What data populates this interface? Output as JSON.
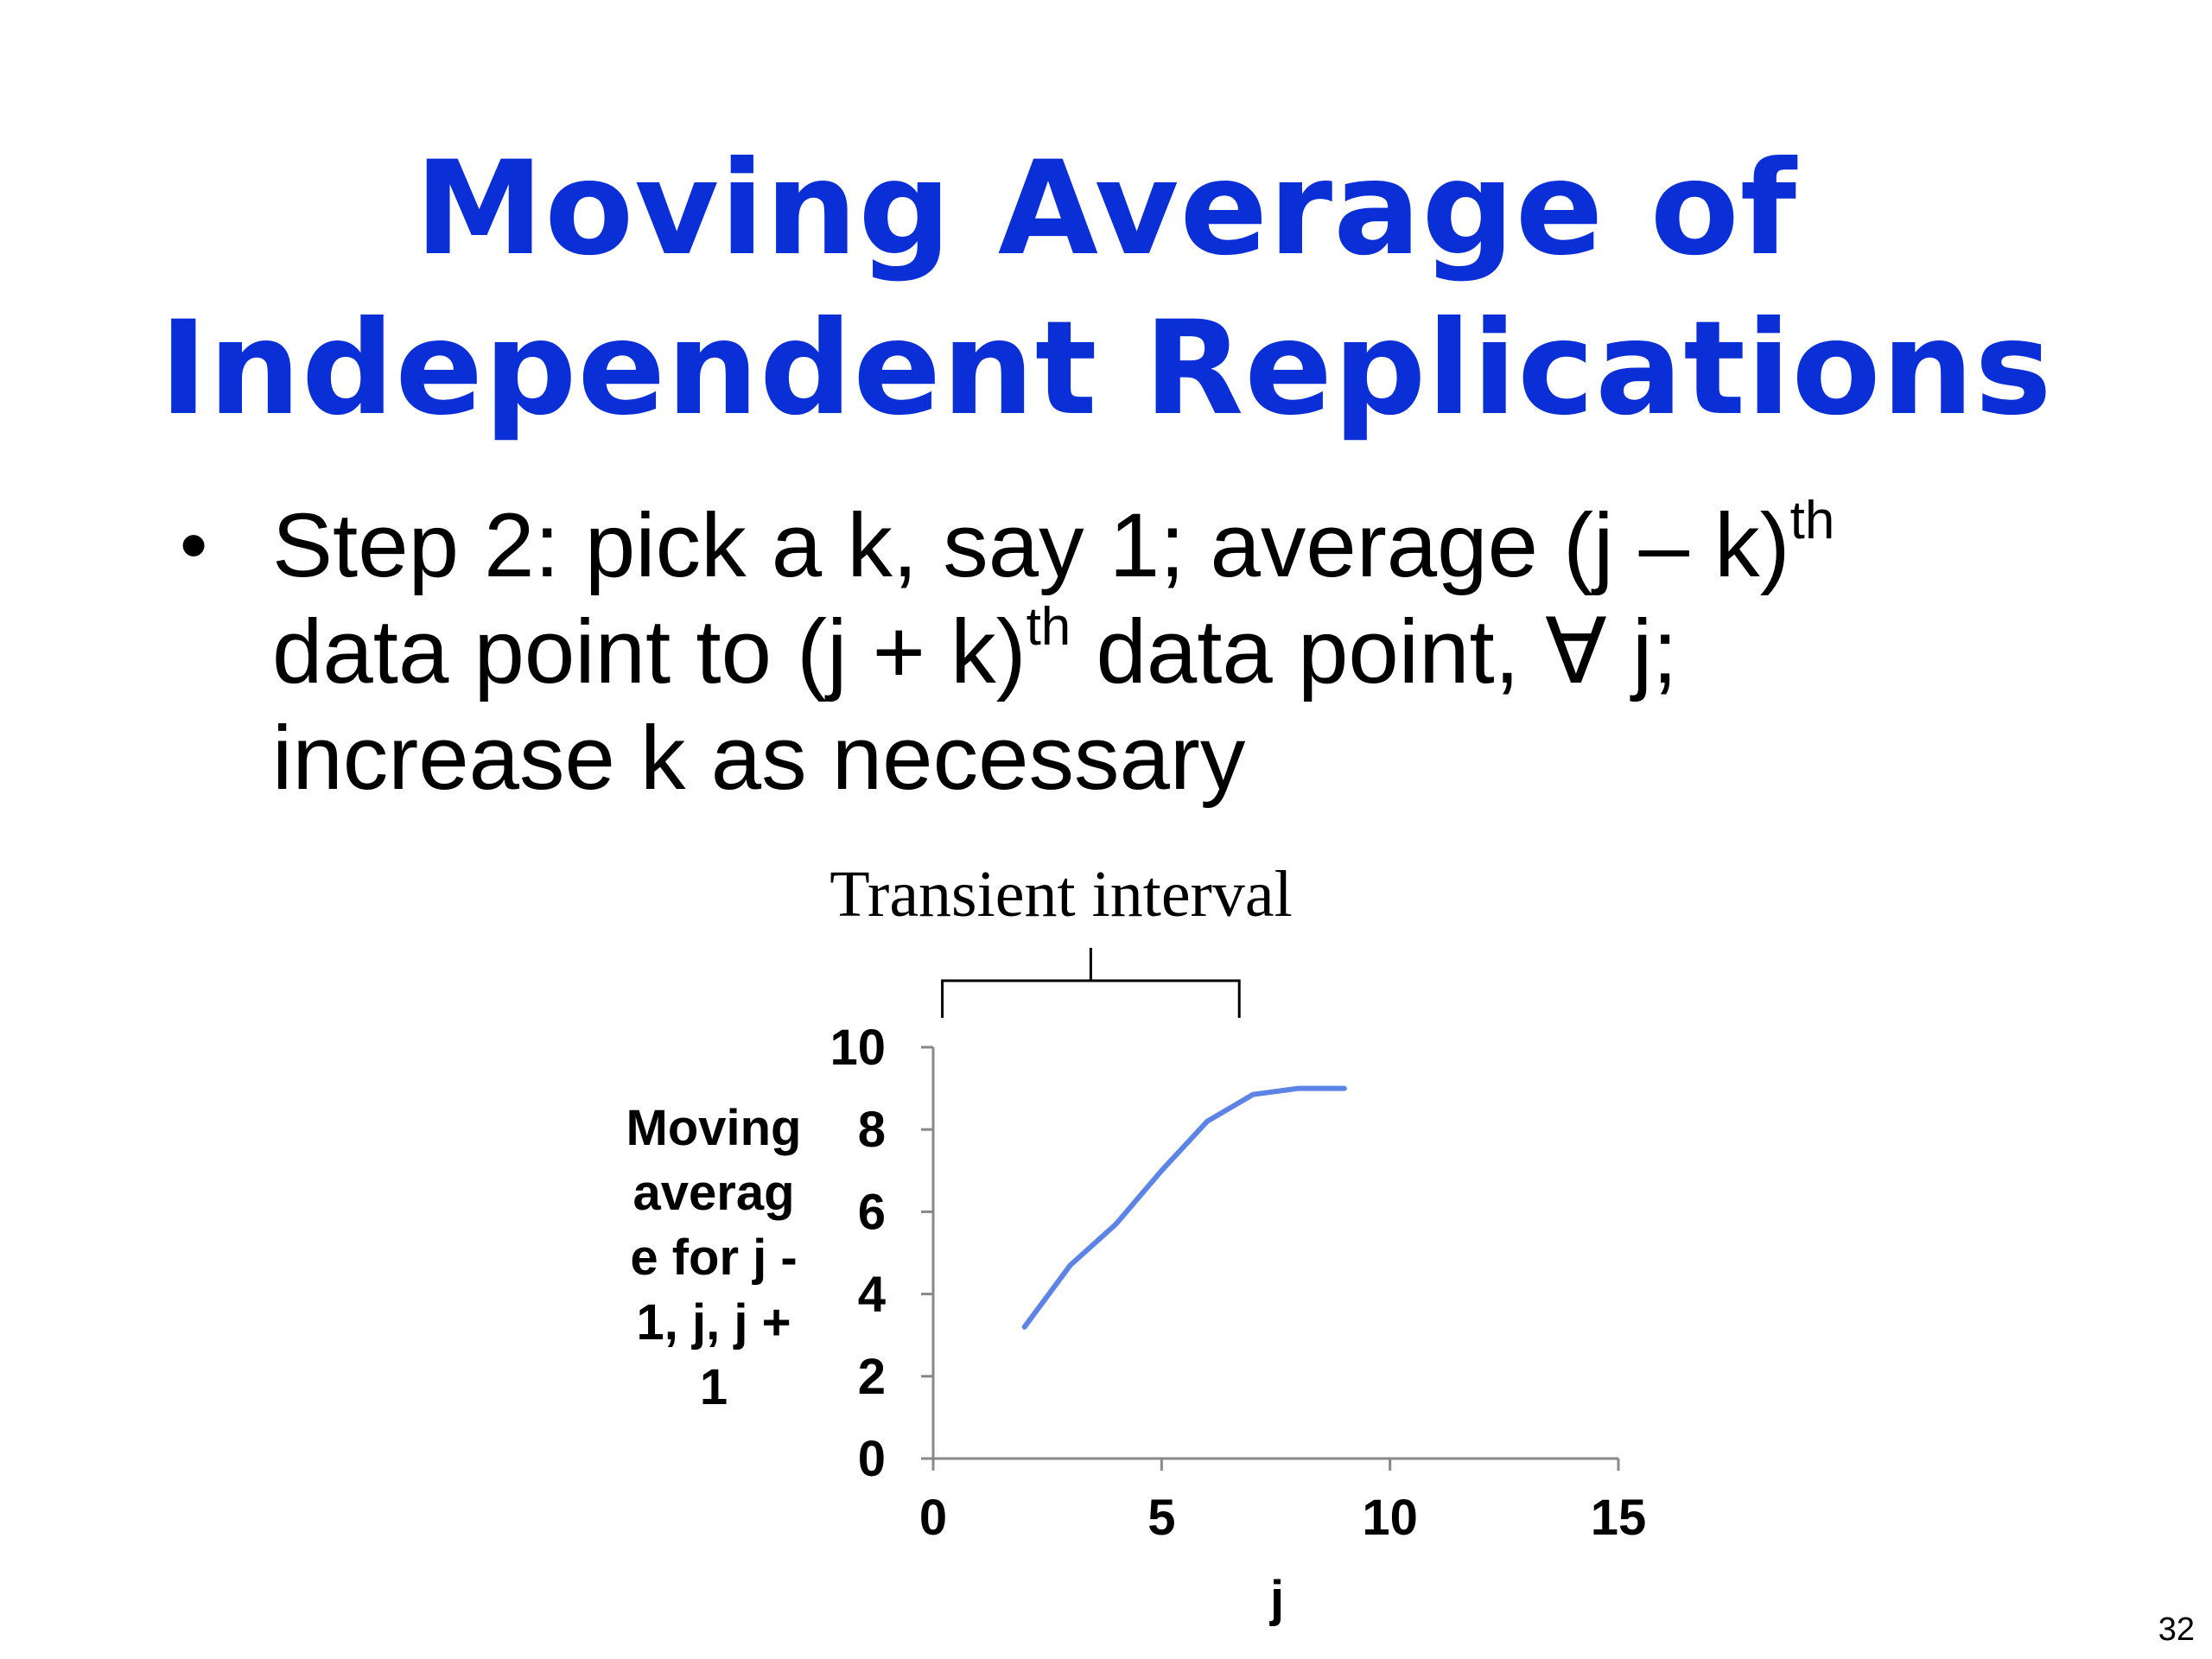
{
  "slide": {
    "title_line1": "Moving Average of",
    "title_line2": "Independent Replications",
    "bullet": {
      "line1_main": "Step 2: pick a k, say 1; average (j – k)",
      "line1_sup": "th",
      "line2_a": "data point to (j + k)",
      "line2_sup": "th",
      "line2_b": " data point, ∀ j;",
      "line3": "increase k as necessary"
    },
    "page_number": "32"
  },
  "chart_data": {
    "type": "line",
    "annotation": "Transient interval",
    "xlabel": "j",
    "ylabel_lines": [
      "Moving",
      "averag",
      "e for j -",
      "1, j, j +",
      "1"
    ],
    "xlim": [
      0,
      15
    ],
    "ylim": [
      0,
      10
    ],
    "x_ticks": [
      0,
      5,
      10,
      15
    ],
    "y_ticks": [
      0,
      2,
      4,
      6,
      8,
      10
    ],
    "grid": false,
    "line_color": "#5b84e6",
    "transient_interval": [
      0.2,
      6.7
    ],
    "series": [
      {
        "x": [
          2,
          3,
          4,
          5,
          6,
          7,
          8,
          9
        ],
        "y": [
          3.2,
          4.7,
          5.7,
          7.0,
          8.2,
          8.85,
          9.0,
          9.0
        ]
      }
    ]
  }
}
